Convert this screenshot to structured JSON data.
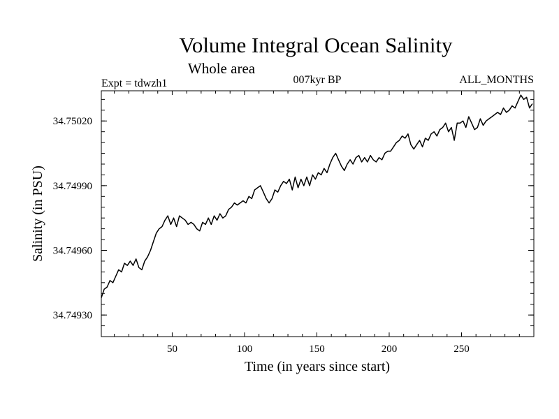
{
  "chart_data": {
    "type": "line",
    "title": "Volume Integral Ocean Salinity",
    "subtitle": "Whole area",
    "experiment": "Expt = tdwzh1",
    "period": "007kyr BP",
    "months": "ALL_MONTHS",
    "xlabel": "Time (in years since start)",
    "ylabel": "Salinity (in PSU)",
    "xlim": [
      1,
      300
    ],
    "ylim": [
      34.7492,
      34.75034
    ],
    "xticks": [
      50,
      100,
      150,
      200,
      250
    ],
    "xtick_labels": [
      "50",
      "100",
      "150",
      "200",
      "250"
    ],
    "yticks": [
      34.7493,
      34.7496,
      34.7499,
      34.7502
    ],
    "ytick_labels": [
      "34.74930",
      "34.74960",
      "34.74990",
      "34.75020"
    ],
    "grid": false,
    "series": [
      {
        "name": "Salinity",
        "x": [
          1,
          3,
          5,
          7,
          9,
          11,
          13,
          15,
          17,
          19,
          21,
          23,
          25,
          27,
          29,
          31,
          33,
          35,
          37,
          39,
          41,
          43,
          45,
          47,
          49,
          51,
          53,
          55,
          57,
          59,
          61,
          63,
          65,
          67,
          69,
          71,
          73,
          75,
          77,
          79,
          81,
          83,
          85,
          87,
          89,
          91,
          93,
          95,
          97,
          99,
          101,
          103,
          105,
          107,
          109,
          111,
          113,
          115,
          117,
          119,
          121,
          123,
          125,
          127,
          129,
          131,
          133,
          135,
          137,
          139,
          141,
          143,
          145,
          147,
          149,
          151,
          153,
          155,
          157,
          159,
          161,
          163,
          165,
          167,
          169,
          171,
          173,
          175,
          177,
          179,
          181,
          183,
          185,
          187,
          189,
          191,
          193,
          195,
          197,
          199,
          201,
          203,
          205,
          207,
          209,
          211,
          213,
          215,
          217,
          219,
          221,
          223,
          225,
          227,
          229,
          231,
          233,
          235,
          237,
          239,
          241,
          243,
          245,
          247,
          249,
          251,
          253,
          255,
          257,
          259,
          261,
          263,
          265,
          267,
          269,
          271,
          273,
          275,
          277,
          279,
          281,
          283,
          285,
          287,
          289,
          291,
          293,
          295,
          297,
          299
        ],
        "values": [
          34.74938,
          34.74942,
          34.74943,
          34.74946,
          34.74945,
          34.74948,
          34.74951,
          34.7495,
          34.74954,
          34.74953,
          34.74955,
          34.74953,
          34.74956,
          34.74952,
          34.74951,
          34.74955,
          34.74957,
          34.7496,
          34.74964,
          34.74968,
          34.7497,
          34.74971,
          34.74974,
          34.74976,
          34.74972,
          34.74975,
          34.74971,
          34.74976,
          34.74975,
          34.74974,
          34.74972,
          34.74973,
          34.74972,
          34.7497,
          34.74969,
          34.74973,
          34.74972,
          34.74975,
          34.74972,
          34.74976,
          34.74974,
          34.74977,
          34.74975,
          34.74976,
          34.74979,
          34.7498,
          34.74982,
          34.74981,
          34.74982,
          34.74983,
          34.74982,
          34.74985,
          34.74984,
          34.74988,
          34.74989,
          34.7499,
          34.74987,
          34.74984,
          34.74982,
          34.74984,
          34.74988,
          34.74987,
          34.7499,
          34.74992,
          34.74991,
          34.74993,
          34.74988,
          34.74994,
          34.74989,
          34.74993,
          34.7499,
          34.74994,
          34.7499,
          34.74995,
          34.74993,
          34.74996,
          34.74995,
          34.74998,
          34.74996,
          34.75,
          34.75003,
          34.75005,
          34.75002,
          34.74999,
          34.74997,
          34.75,
          34.75002,
          34.75,
          34.75003,
          34.75004,
          34.75001,
          34.75003,
          34.75001,
          34.75004,
          34.75002,
          34.75001,
          34.75003,
          34.75002,
          34.75005,
          34.75006,
          34.75006,
          34.75008,
          34.7501,
          34.75011,
          34.75013,
          34.75012,
          34.75014,
          34.75009,
          34.75007,
          34.75009,
          34.75011,
          34.75008,
          34.75012,
          34.75011,
          34.75014,
          34.75015,
          34.75013,
          34.75016,
          34.75017,
          34.75019,
          34.75015,
          34.75017,
          34.75011,
          34.75019,
          34.75019,
          34.7502,
          34.75017,
          34.75022,
          34.75019,
          34.75016,
          34.75017,
          34.75021,
          34.75018,
          34.7502,
          34.75021,
          34.75022,
          34.75023,
          34.75024,
          34.75023,
          34.75026,
          34.75024,
          34.75025,
          34.75027,
          34.75026,
          34.75029,
          34.75032,
          34.7503,
          34.75031,
          34.75026,
          34.75028
        ]
      }
    ]
  }
}
